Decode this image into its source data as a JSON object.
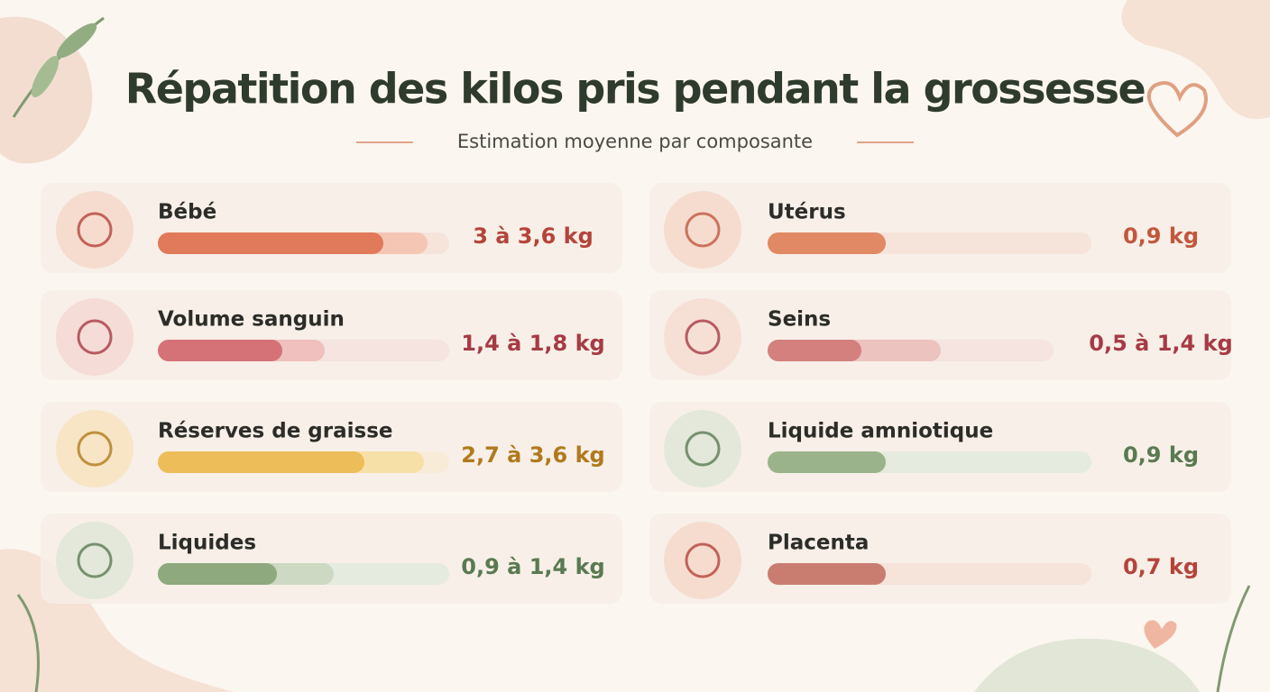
{
  "title": "Répatition des kilos pris pendant la grossesse",
  "subtitle": "Estimation moyenne par composante",
  "items": [
    {
      "label": "Bébé",
      "value": "3 à 3,6 kg"
    },
    {
      "label": "Volume sanguin",
      "value": "1,4 à 1,8 kg"
    },
    {
      "label": "Réserves de graisse",
      "value": "2,7 à 3,6 kg"
    },
    {
      "label": "Liquides",
      "value": "0,9 à 1,4 kg"
    },
    {
      "label": "Utérus",
      "value": "0,9 kg"
    },
    {
      "label": "Seins",
      "value": "0,5 à 1,4 kg"
    },
    {
      "label": "Liquide amniotique",
      "value": "0,9 kg"
    },
    {
      "label": "Placenta",
      "value": "0,7 kg"
    }
  ]
}
